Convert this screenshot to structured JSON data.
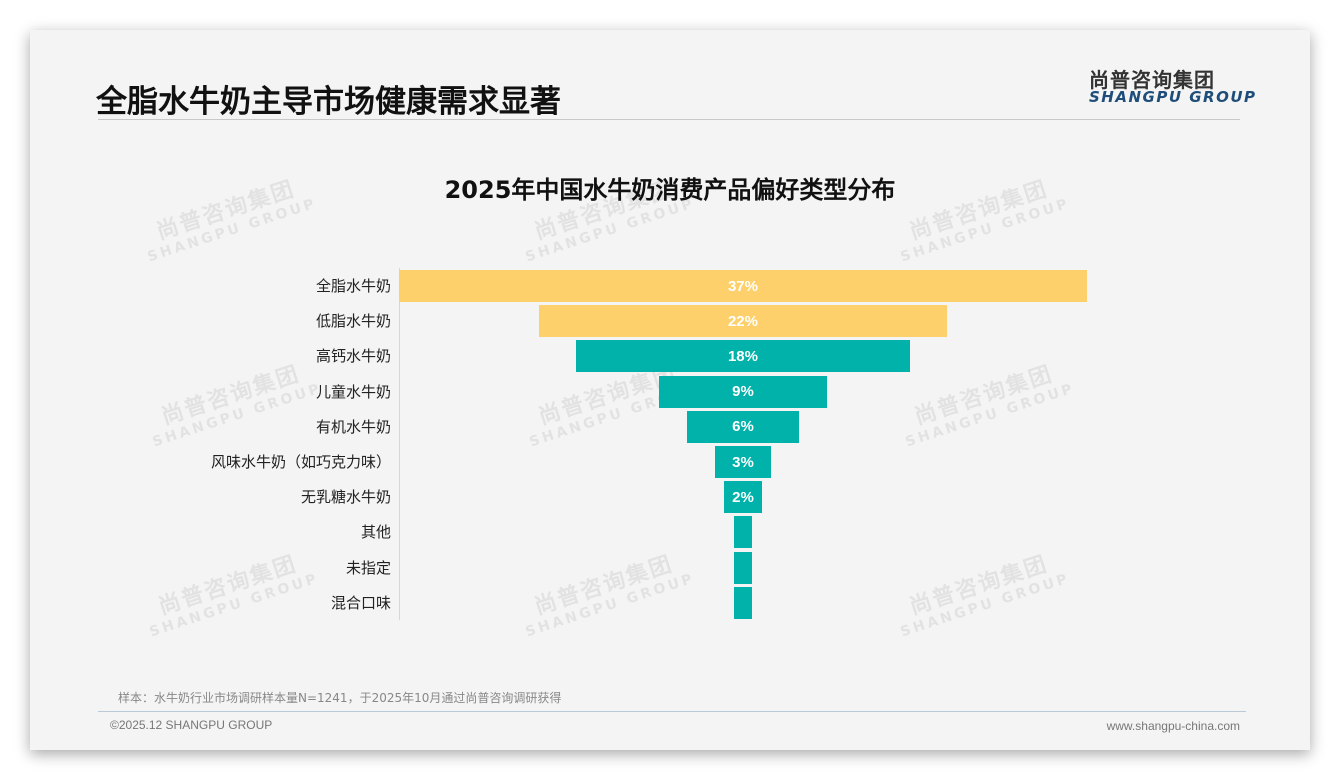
{
  "header": {
    "title": "全脂水牛奶主导市场健康需求显著",
    "logo_cn": "尚普咨询集团",
    "logo_en": "SHANGPU GROUP"
  },
  "watermark": {
    "cn": "尚普咨询集团",
    "en": "SHANGPU GROUP"
  },
  "colors": {
    "top_bars": "#fdd06b",
    "other_bars": "#00b2a9",
    "label_text": "#ffffff"
  },
  "chart_data": {
    "type": "bar",
    "orientation": "horizontal-funnel",
    "title": "2025年中国水牛奶消费产品偏好类型分布",
    "categories": [
      "全脂水牛奶",
      "低脂水牛奶",
      "高钙水牛奶",
      "儿童水牛奶",
      "有机水牛奶",
      "风味水牛奶（如巧克力味）",
      "无乳糖水牛奶",
      "其他",
      "未指定",
      "混合口味"
    ],
    "values": [
      37,
      22,
      18,
      9,
      6,
      3,
      2,
      1,
      1,
      1
    ],
    "labels": [
      "37%",
      "22%",
      "18%",
      "9%",
      "6%",
      "3%",
      "2%",
      "",
      "",
      ""
    ],
    "bar_colors": [
      "#fdd06b",
      "#fdd06b",
      "#00b2a9",
      "#00b2a9",
      "#00b2a9",
      "#00b2a9",
      "#00b2a9",
      "#00b2a9",
      "#00b2a9",
      "#00b2a9"
    ],
    "unit": "%",
    "xlabel": "",
    "ylabel": "",
    "grid": false,
    "legend": null
  },
  "footer": {
    "sample_note": "样本：水牛奶行业市场调研样本量N=1241，于2025年10月通过尚普咨询调研获得",
    "copyright": "©2025.12 SHANGPU GROUP",
    "website": "www.shangpu-china.com"
  }
}
